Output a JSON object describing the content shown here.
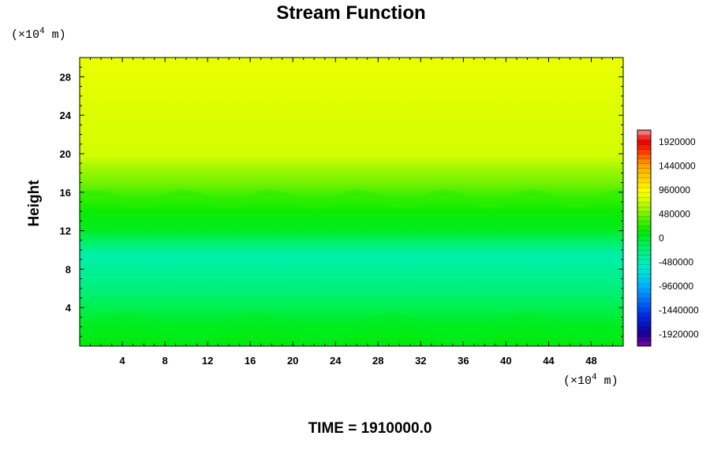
{
  "chart_data": {
    "type": "heatmap",
    "title": "Stream Function",
    "ylabel": "Height",
    "xlabel": "",
    "x_unit_label": "(×10⁴ m)",
    "y_unit_label": "(×10⁴ m)",
    "xlim": [
      0,
      51
    ],
    "ylim": [
      0,
      30
    ],
    "x_ticks": [
      "4",
      "8",
      "12",
      "16",
      "20",
      "24",
      "28",
      "32",
      "36",
      "40",
      "44",
      "48"
    ],
    "y_ticks": [
      "4",
      "8",
      "12",
      "16",
      "20",
      "24",
      "28"
    ],
    "time_label": "TIME = 1910000.0",
    "colorbar": {
      "range": [
        -2160000,
        2160000
      ],
      "labels": [
        "1920000",
        "1440000",
        "960000",
        "480000",
        "0",
        "-480000",
        "-960000",
        "-1440000",
        "-1920000"
      ]
    },
    "field_profile": [
      {
        "height": 0,
        "value": 100000
      },
      {
        "height": 2,
        "value": 60000
      },
      {
        "height": 4,
        "value": -80000
      },
      {
        "height": 6,
        "value": -250000
      },
      {
        "height": 8,
        "value": -360000
      },
      {
        "height": 9.5,
        "value": -420000
      },
      {
        "height": 11,
        "value": -150000
      },
      {
        "height": 12,
        "value": 40000
      },
      {
        "height": 14,
        "value": 160000
      },
      {
        "height": 15.5,
        "value": 300000
      },
      {
        "height": 17,
        "value": 470000
      },
      {
        "height": 18.5,
        "value": 600000
      },
      {
        "height": 19.8,
        "value": 760000
      },
      {
        "height": 30,
        "value": 860000
      }
    ]
  }
}
